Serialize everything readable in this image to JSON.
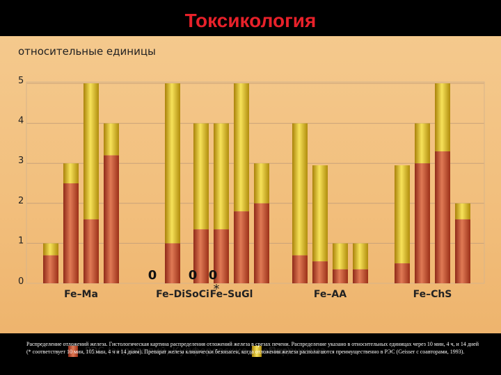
{
  "title": "Токсикология",
  "footer": "Распределение отложений железа. Гистологическая картина распределения отложений железа в срезах печени. Распределение указано в относительных единицах через 10 мин, 4 ч, и 14 дней (* соответствует 10 мин, 105 мин, 4 ч и 14 дням). Препарат железа клинически безопасен, когда отложения железа располагаются преимущественно в РЭС (Geisser с соавторами, 1993).",
  "colors": {
    "res": "#c2462a",
    "parenchyma": "#e7c11a",
    "background": "#f2c482",
    "title": "#e8212a"
  },
  "chart_data": {
    "type": "bar",
    "stacked": true,
    "ylabel": "относительные единицы",
    "ylim": [
      0,
      5
    ],
    "yticks": [
      "0",
      "1",
      "2",
      "3",
      "4",
      "5"
    ],
    "grid": true,
    "legend_position": "bottom",
    "groups": [
      {
        "label": "Fe–Ma",
        "res": [
          0.7,
          2.5,
          1.6,
          3.2
        ],
        "total": [
          1.0,
          3.0,
          5.0,
          4.0
        ]
      },
      {
        "label": "Fe–DiSoCi",
        "marker": "*",
        "res": [
          0,
          1.0,
          0,
          0
        ],
        "total": [
          0,
          5.0,
          0,
          0
        ],
        "zero_labels": [
          "0",
          "",
          "0",
          "0"
        ]
      },
      {
        "label": "Fe–SuGl",
        "res": [
          1.35,
          1.35,
          1.8,
          2.0
        ],
        "total": [
          4.0,
          4.0,
          5.0,
          3.0
        ]
      },
      {
        "label": "Fe–AA",
        "res": [
          0.7,
          0.55,
          0.35,
          0.35
        ],
        "total": [
          4.0,
          2.95,
          1.0,
          1.0
        ]
      },
      {
        "label": "Fe–ChS",
        "res": [
          0.5,
          3.0,
          3.3,
          1.6
        ],
        "total": [
          2.95,
          4.0,
          5.0,
          2.0
        ]
      }
    ],
    "series": [
      {
        "name": "РЭС (эндотелий, Купферовские клетки)"
      },
      {
        "name": "Паренхима"
      }
    ]
  }
}
